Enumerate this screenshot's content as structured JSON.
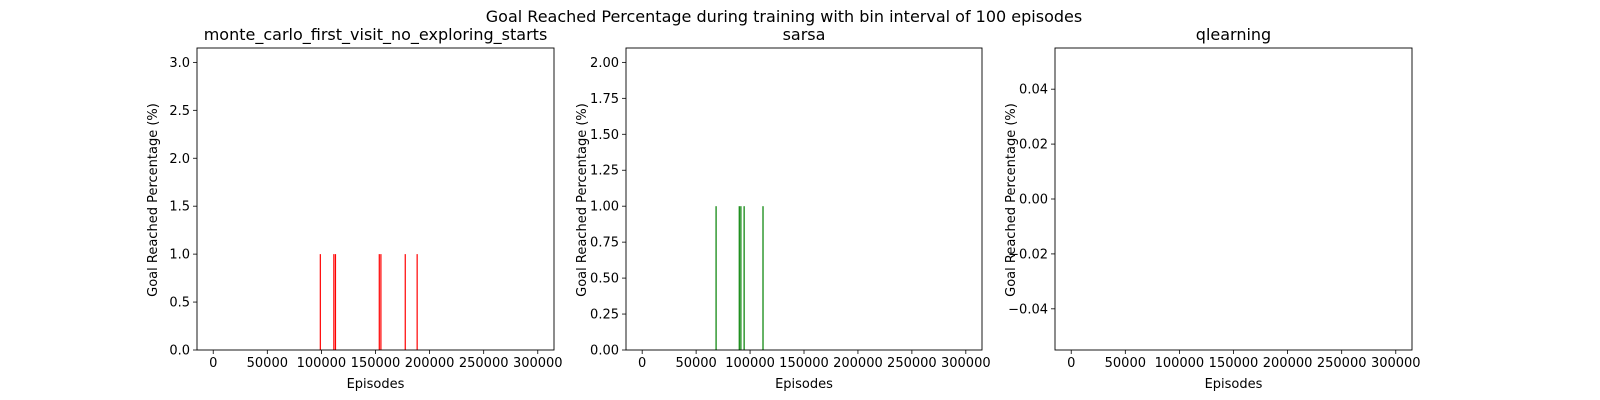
{
  "suptitle": "Goal Reached Percentage during training with bin interval of 100 episodes",
  "chart_data": [
    {
      "type": "bar",
      "title": "monte_carlo_first_visit_no_exploring_starts",
      "xlabel": "Episodes",
      "ylabel": "Goal Reached Percentage (%)",
      "color": "#ff0000",
      "xlim": [
        -15000,
        315000
      ],
      "ylim": [
        0,
        3.15
      ],
      "xticks": [
        0,
        50000,
        100000,
        150000,
        200000,
        250000,
        300000
      ],
      "xtick_labels": [
        "0",
        "50000",
        "100000",
        "150000",
        "200000",
        "250000",
        "300000"
      ],
      "yticks": [
        0,
        0.5,
        1.0,
        1.5,
        2.0,
        2.5,
        3.0
      ],
      "ytick_labels": [
        "0.0",
        "0.5",
        "1.0",
        "1.5",
        "2.0",
        "2.5",
        "3.0"
      ],
      "x": [
        99000,
        111500,
        113000,
        153500,
        155000,
        177500,
        188500
      ],
      "values": [
        1,
        1,
        1,
        1,
        1,
        1,
        1
      ],
      "grid": false
    },
    {
      "type": "bar",
      "title": "sarsa",
      "xlabel": "Episodes",
      "ylabel": "Goal Reached Percentage (%)",
      "color": "#008000",
      "xlim": [
        -15000,
        315000
      ],
      "ylim": [
        0,
        2.1
      ],
      "xticks": [
        0,
        50000,
        100000,
        150000,
        200000,
        250000,
        300000
      ],
      "xtick_labels": [
        "0",
        "50000",
        "100000",
        "150000",
        "200000",
        "250000",
        "300000"
      ],
      "yticks": [
        0,
        0.25,
        0.5,
        0.75,
        1.0,
        1.25,
        1.5,
        1.75,
        2.0
      ],
      "ytick_labels": [
        "0.00",
        "0.25",
        "0.50",
        "0.75",
        "1.00",
        "1.25",
        "1.50",
        "1.75",
        "2.00"
      ],
      "x": [
        68500,
        90000,
        91500,
        94500,
        112000
      ],
      "values": [
        1,
        1,
        1,
        1,
        1
      ],
      "grid": false
    },
    {
      "type": "bar",
      "title": "qlearning",
      "xlabel": "Episodes",
      "ylabel": "Goal Reached Percentage (%)",
      "color": "#0000ff",
      "xlim": [
        -15000,
        315000
      ],
      "ylim": [
        -0.055,
        0.055
      ],
      "xticks": [
        0,
        50000,
        100000,
        150000,
        200000,
        250000,
        300000
      ],
      "xtick_labels": [
        "0",
        "50000",
        "100000",
        "150000",
        "200000",
        "250000",
        "300000"
      ],
      "yticks": [
        -0.04,
        -0.02,
        0.0,
        0.02,
        0.04
      ],
      "ytick_labels": [
        "−0.04",
        "−0.02",
        "0.00",
        "0.02",
        "0.04"
      ],
      "x": [],
      "values": [],
      "grid": false
    }
  ]
}
